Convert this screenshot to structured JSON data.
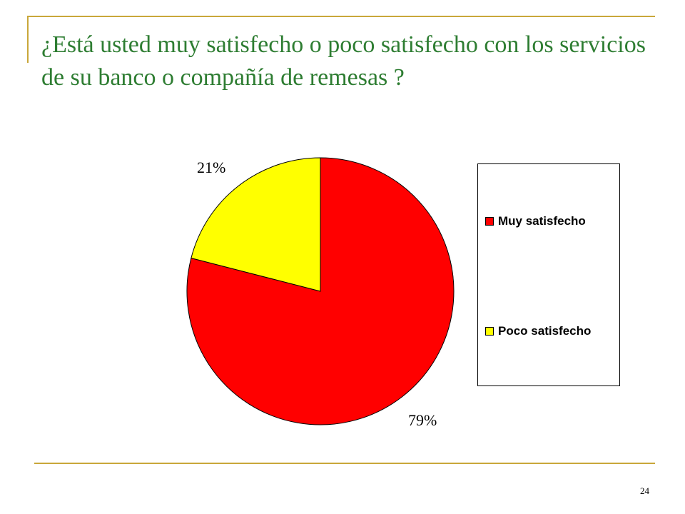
{
  "slide": {
    "title": "¿Está usted muy satisfecho o poco satisfecho con los servicios de su banco o compañía de remesas ?",
    "page_number": "24"
  },
  "colors": {
    "accent_rule": "#c9a73a",
    "title_text": "#2e7d32"
  },
  "chart_data": {
    "type": "pie",
    "categories": [
      "Muy satisfecho",
      "Poco satisfecho"
    ],
    "values": [
      79,
      21
    ],
    "value_labels": [
      "79%",
      "21%"
    ],
    "colors": [
      "#ff0000",
      "#ffff00"
    ],
    "legend_position": "right",
    "title": "",
    "start": "12 o'clock, clockwise"
  }
}
